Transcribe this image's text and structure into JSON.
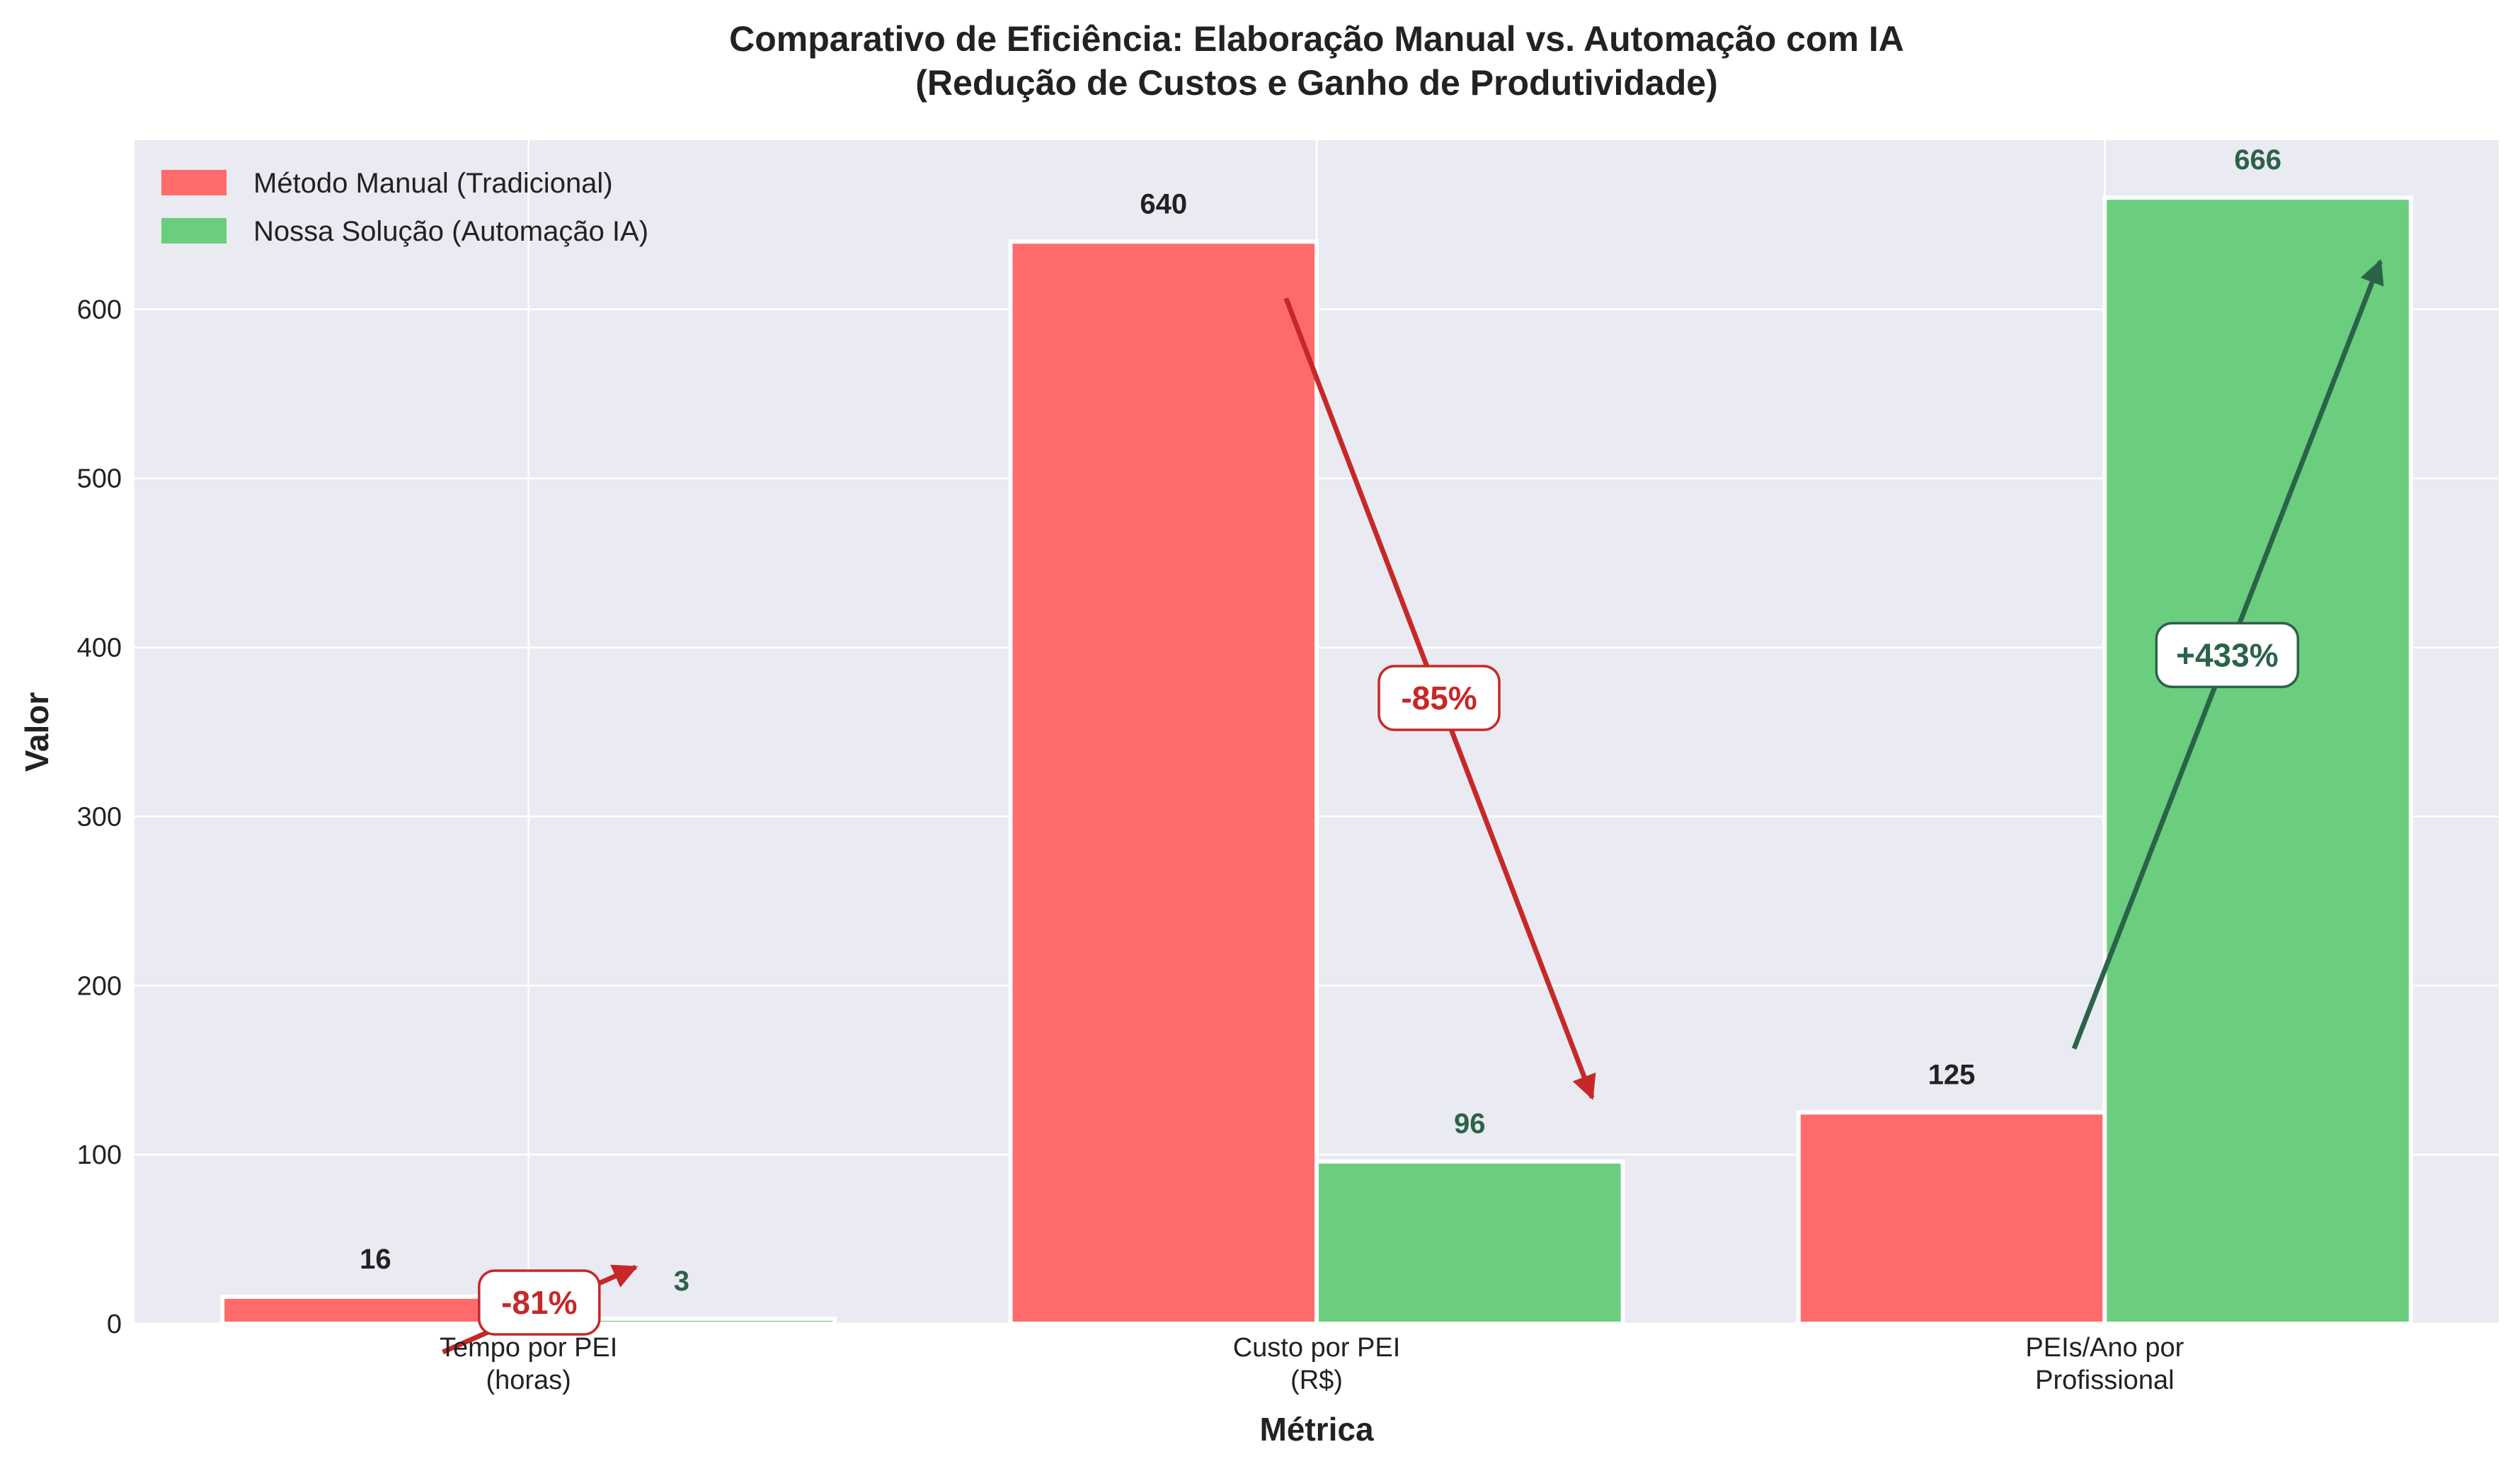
{
  "chart_data": {
    "type": "bar",
    "title": "Comparativo de Eficiência: Elaboração Manual vs. Automação com IA",
    "subtitle": "(Redução de Custos e Ganho de Produtividade)",
    "xlabel": "Métrica",
    "ylabel": "Valor",
    "categories": [
      "Tempo por PEI\n(horas)",
      "Custo por PEI\n(R$)",
      "PEIs/Ano por\nProfissional"
    ],
    "ylim": [
      0,
      700
    ],
    "yticks": [
      0,
      100,
      200,
      300,
      400,
      500,
      600
    ],
    "grid": true,
    "legend_position": "top-left",
    "series": [
      {
        "name": "Método Manual (Tradicional)",
        "values": [
          16,
          640,
          125
        ],
        "color": "#ff6b6b",
        "label_color": "#222222"
      },
      {
        "name": "Nossa Solução (Automação IA)",
        "values": [
          3,
          96,
          666
        ],
        "color": "#6bcd7e",
        "label_color": "#2b6349"
      }
    ],
    "annotations": [
      {
        "text": "-81%",
        "category": 0,
        "color": "#c62828"
      },
      {
        "text": "-85%",
        "category": 1,
        "color": "#c62828"
      },
      {
        "text": "+433%",
        "category": 2,
        "color": "#2b6349"
      }
    ],
    "colors": {
      "background": "#eaeaf2",
      "grid": "#ffffff"
    }
  }
}
